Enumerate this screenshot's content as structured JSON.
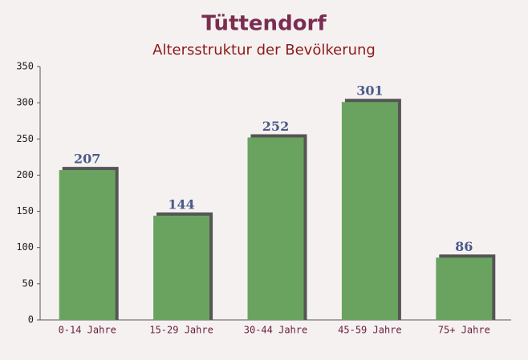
{
  "chart_data": {
    "type": "bar",
    "title": "Tüttendorf",
    "subtitle": "Altersstruktur der Bevölkerung",
    "categories": [
      "0-14 Jahre",
      "15-29 Jahre",
      "30-44 Jahre",
      "45-59 Jahre",
      "75+ Jahre"
    ],
    "values": [
      207,
      144,
      252,
      301,
      86
    ],
    "color": "#6aa35f",
    "ylim": [
      0,
      350
    ],
    "yticks": [
      0,
      50,
      100,
      150,
      200,
      250,
      300,
      350
    ],
    "grid": false
  }
}
